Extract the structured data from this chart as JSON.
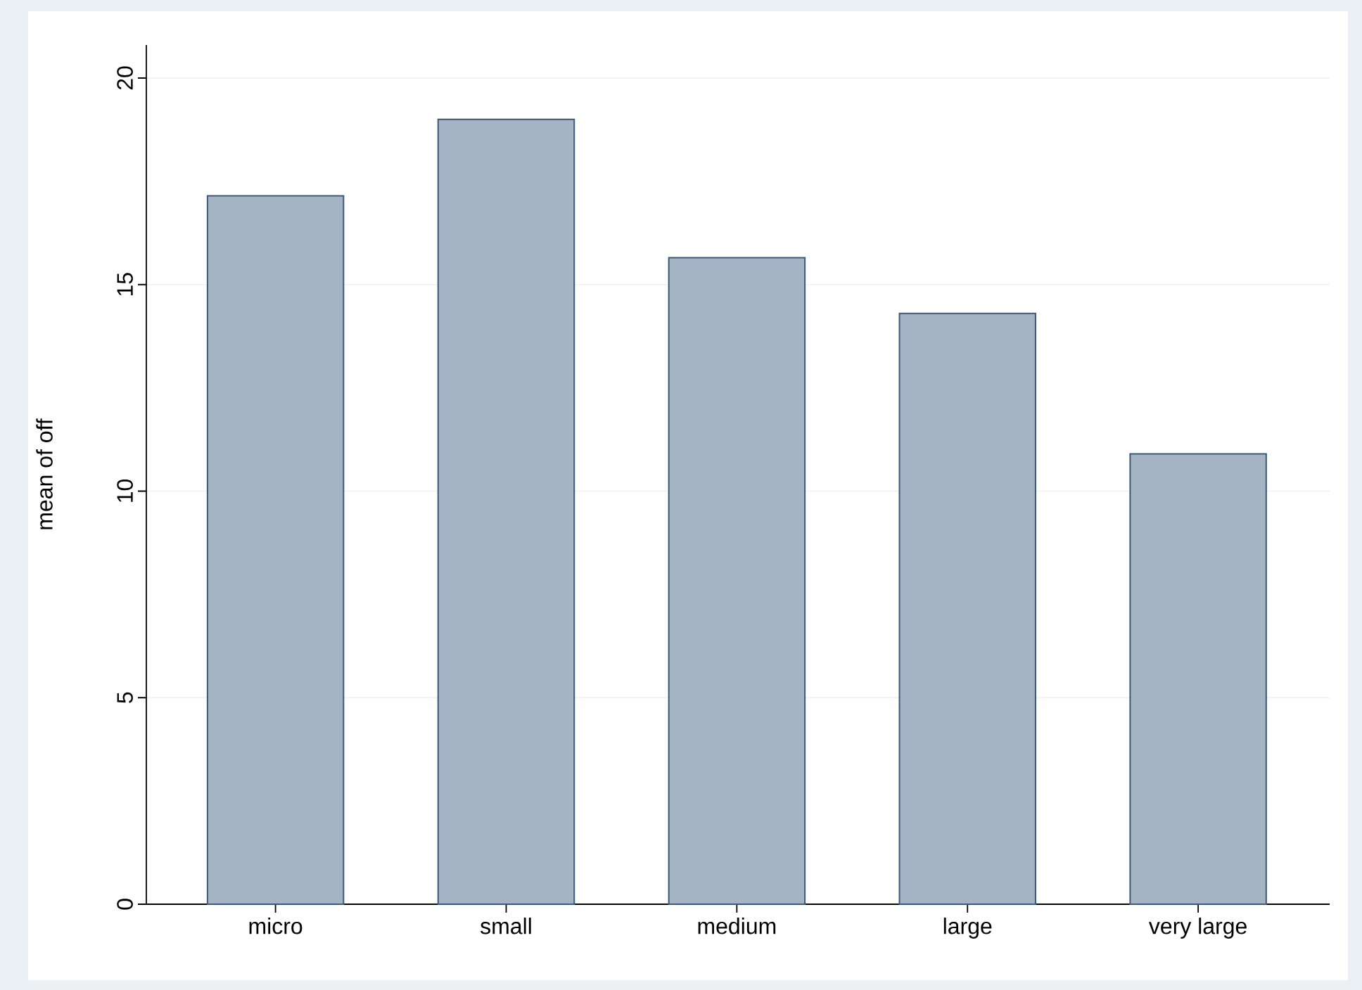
{
  "chart_data": {
    "type": "bar",
    "ylabel": "mean of off",
    "categories": [
      "micro",
      "small",
      "medium",
      "large",
      "very large"
    ],
    "values": [
      17.15,
      19.0,
      15.65,
      14.3,
      10.9
    ],
    "color": "#a4b4c4",
    "ylim": [
      0,
      20.8
    ],
    "yticks": [
      0,
      5,
      10,
      15,
      20
    ],
    "grid": "y"
  }
}
